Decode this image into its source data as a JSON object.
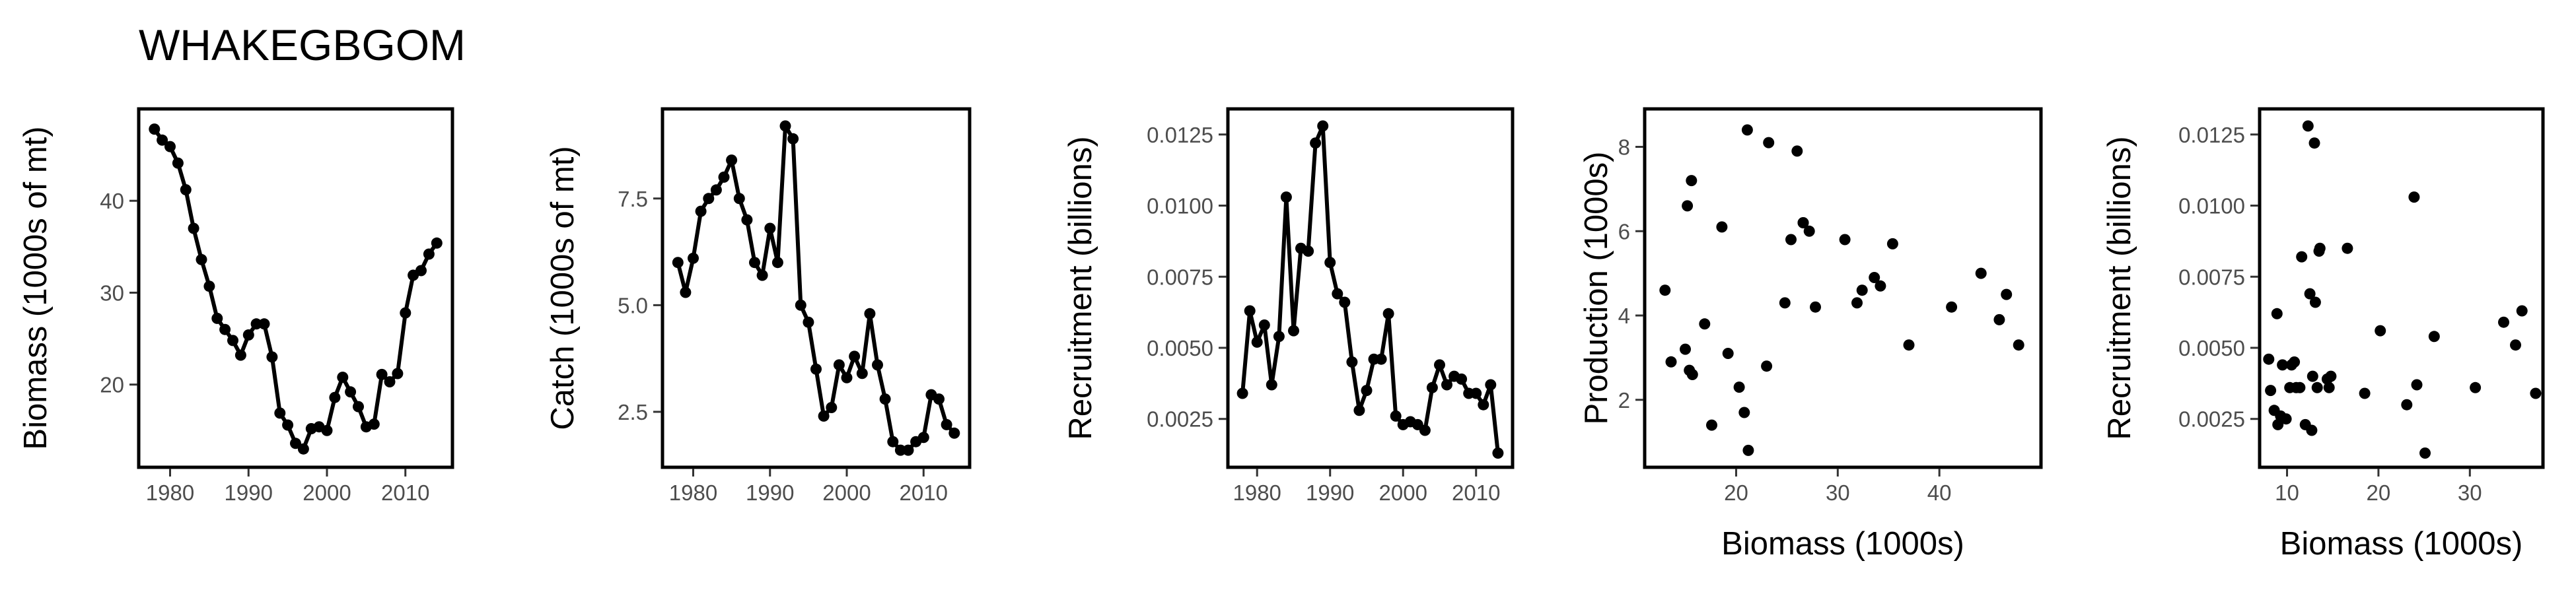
{
  "figure_title": "WHAKEGBGOM",
  "chart_data": [
    {
      "type": "line",
      "xlabel": "",
      "ylabel": "Biomass (1000s of mt)",
      "xlim": [
        1976,
        2016
      ],
      "ylim": [
        11,
        50
      ],
      "xticks": [
        1980,
        1990,
        2000,
        2010
      ],
      "yticks": [
        20,
        30,
        40
      ],
      "x": [
        1978,
        1979,
        1980,
        1981,
        1982,
        1983,
        1984,
        1985,
        1986,
        1987,
        1988,
        1989,
        1990,
        1991,
        1992,
        1993,
        1994,
        1995,
        1996,
        1997,
        1998,
        1999,
        2000,
        2001,
        2002,
        2003,
        2004,
        2005,
        2006,
        2007,
        2008,
        2009,
        2010,
        2011,
        2012,
        2013,
        2014
      ],
      "y": [
        47.8,
        46.6,
        45.9,
        44.1,
        41.2,
        37.0,
        33.6,
        30.7,
        27.2,
        26.0,
        24.8,
        23.2,
        25.4,
        26.6,
        26.6,
        23.0,
        16.9,
        15.6,
        13.6,
        13.0,
        15.2,
        15.4,
        15.0,
        18.6,
        20.8,
        19.2,
        17.6,
        15.4,
        15.7,
        21.1,
        20.3,
        21.2,
        27.8,
        31.9,
        32.4,
        34.2,
        35.4
      ]
    },
    {
      "type": "line",
      "xlabel": "",
      "ylabel": "Catch (1000s of mt)",
      "xlim": [
        1976,
        2016
      ],
      "ylim": [
        1.2,
        9.6
      ],
      "xticks": [
        1980,
        1990,
        2000,
        2010
      ],
      "yticks": [
        2.5,
        5.0,
        7.5
      ],
      "ytick_labels": [
        "2.5",
        "5.0",
        "7.5"
      ],
      "x": [
        1978,
        1979,
        1980,
        1981,
        1982,
        1983,
        1984,
        1985,
        1986,
        1987,
        1988,
        1989,
        1990,
        1991,
        1992,
        1993,
        1994,
        1995,
        1996,
        1997,
        1998,
        1999,
        2000,
        2001,
        2002,
        2003,
        2004,
        2005,
        2006,
        2007,
        2008,
        2009,
        2010,
        2011,
        2012,
        2013,
        2014
      ],
      "y": [
        6.0,
        5.3,
        6.1,
        7.2,
        7.5,
        7.7,
        8.0,
        8.4,
        7.5,
        7.0,
        6.0,
        5.7,
        6.8,
        6.0,
        9.2,
        8.9,
        5.0,
        4.6,
        3.5,
        2.4,
        2.6,
        3.6,
        3.3,
        3.8,
        3.4,
        4.8,
        3.6,
        2.8,
        1.8,
        1.6,
        1.6,
        1.8,
        1.9,
        2.9,
        2.8,
        2.2,
        2.0
      ]
    },
    {
      "type": "line",
      "xlabel": "",
      "ylabel": "Recruitment (billions)",
      "xlim": [
        1976,
        2015
      ],
      "ylim": [
        0.0008,
        0.0134
      ],
      "xticks": [
        1980,
        1990,
        2000,
        2010
      ],
      "yticks": [
        0.0025,
        0.005,
        0.0075,
        0.01,
        0.0125
      ],
      "ytick_labels": [
        "0.0025",
        "0.0050",
        "0.0075",
        "0.0100",
        "0.0125"
      ],
      "x": [
        1978,
        1979,
        1980,
        1981,
        1982,
        1983,
        1984,
        1985,
        1986,
        1987,
        1988,
        1989,
        1990,
        1991,
        1992,
        1993,
        1994,
        1995,
        1996,
        1997,
        1998,
        1999,
        2000,
        2001,
        2002,
        2003,
        2004,
        2005,
        2006,
        2007,
        2008,
        2009,
        2010,
        2011,
        2012,
        2013
      ],
      "y": [
        0.0034,
        0.0063,
        0.0052,
        0.0058,
        0.0037,
        0.0054,
        0.0103,
        0.0056,
        0.0085,
        0.0084,
        0.0122,
        0.0128,
        0.008,
        0.0069,
        0.0066,
        0.0045,
        0.0028,
        0.0035,
        0.0046,
        0.0046,
        0.0062,
        0.0026,
        0.0023,
        0.0024,
        0.0023,
        0.0021,
        0.0036,
        0.0044,
        0.0037,
        0.004,
        0.0039,
        0.0034,
        0.0034,
        0.003,
        0.0037,
        0.0013
      ]
    },
    {
      "type": "scatter",
      "xlabel": "Biomass (1000s)",
      "ylabel": "Production (1000s)",
      "xlim": [
        11,
        50
      ],
      "ylim": [
        0.4,
        8.9
      ],
      "xticks": [
        20,
        30,
        40
      ],
      "yticks": [
        2,
        4,
        6,
        8
      ],
      "x": [
        13.0,
        13.6,
        15.0,
        15.2,
        15.4,
        15.6,
        15.7,
        16.9,
        17.6,
        18.6,
        19.2,
        20.3,
        20.8,
        21.1,
        21.2,
        23.0,
        23.2,
        24.8,
        26.0,
        27.2,
        26.6,
        26.6,
        25.4,
        30.7,
        33.6,
        37.0,
        41.2,
        44.1,
        45.9,
        46.6,
        47.8,
        27.8,
        31.9,
        32.4,
        34.2,
        35.4
      ],
      "y": [
        4.6,
        2.9,
        3.2,
        6.6,
        2.7,
        7.2,
        2.6,
        3.8,
        1.4,
        6.1,
        3.1,
        2.3,
        1.7,
        8.4,
        0.8,
        2.8,
        8.1,
        4.3,
        7.9,
        6.0,
        6.2,
        6.2,
        5.8,
        5.8,
        4.9,
        3.3,
        4.2,
        5.0,
        3.9,
        4.5,
        3.3,
        4.2,
        4.3,
        4.6,
        4.7,
        5.7
      ]
    },
    {
      "type": "scatter",
      "xlabel": "Biomass (1000s)",
      "ylabel": "Recruitment (billions)",
      "xlim": [
        7,
        38
      ],
      "ylim": [
        0.0008,
        0.0134
      ],
      "xticks": [
        10,
        20,
        30
      ],
      "yticks": [
        0.0025,
        0.005,
        0.0075,
        0.01,
        0.0125
      ],
      "ytick_labels": [
        "0.0025",
        "0.0050",
        "0.0075",
        "0.0100",
        "0.0125"
      ],
      "x": [
        8.0,
        8.2,
        8.6,
        8.9,
        9.0,
        9.3,
        9.5,
        9.9,
        10.3,
        10.5,
        10.8,
        11.0,
        11.4,
        11.6,
        12.0,
        12.3,
        12.5,
        12.7,
        12.8,
        13.0,
        13.1,
        13.3,
        13.5,
        13.6,
        14.4,
        14.6,
        14.8,
        16.6,
        18.5,
        20.2,
        23.1,
        23.9,
        24.2,
        25.1,
        26.1,
        30.6,
        33.7,
        35.0,
        35.7,
        37.2
      ],
      "y": [
        0.0046,
        0.0035,
        0.0028,
        0.0062,
        0.0023,
        0.0026,
        0.0044,
        0.0025,
        0.0036,
        0.0044,
        0.0045,
        0.0036,
        0.0036,
        0.0082,
        0.0023,
        0.0128,
        0.0069,
        0.0021,
        0.004,
        0.0122,
        0.0066,
        0.0036,
        0.0084,
        0.0085,
        0.0039,
        0.0036,
        0.004,
        0.0085,
        0.0034,
        0.0056,
        0.003,
        0.0103,
        0.0037,
        0.0013,
        0.0054,
        0.0036,
        0.0059,
        0.0051,
        0.0063,
        0.0034
      ]
    }
  ]
}
